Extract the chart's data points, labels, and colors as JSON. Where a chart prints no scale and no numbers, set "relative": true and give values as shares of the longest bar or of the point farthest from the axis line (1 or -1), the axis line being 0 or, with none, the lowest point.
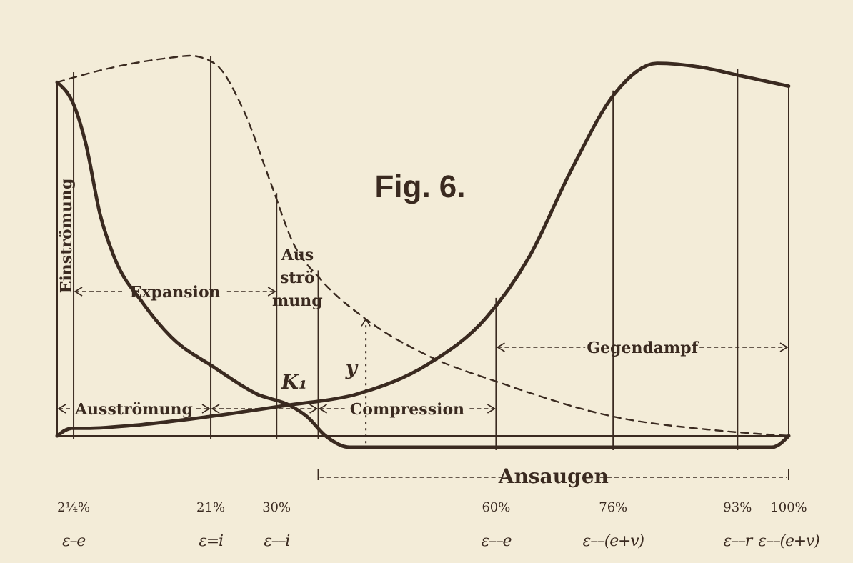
{
  "chart_data": {
    "type": "line",
    "title": "Fig. 6.",
    "relative": true,
    "xlim": [
      0,
      100
    ],
    "xticks": [
      {
        "value": 2.25,
        "label": "2¼%"
      },
      {
        "value": 21,
        "label": "21%"
      },
      {
        "value": 30,
        "label": "30%"
      },
      {
        "value": 60,
        "label": "60%"
      },
      {
        "value": 76,
        "label": "76%"
      },
      {
        "value": 93,
        "label": "93%"
      },
      {
        "value": 100,
        "label": "100%"
      }
    ],
    "tick_labels": "x",
    "marker": "none",
    "series": [
      {
        "color": "#3a2a20",
        "line_style": "solid",
        "x": [
          0,
          2.5,
          3.9,
          5.9,
          7.8,
          11.7,
          15.6,
          21.5,
          27.3,
          31.8,
          34.2,
          36.7,
          40,
          70.3,
          97.7,
          100
        ],
        "values": [
          0.93,
          0.86,
          0.77,
          0.58,
          0.47,
          0.35,
          0.26,
          0.18,
          0.11,
          0.08,
          0.05,
          0,
          -0.03,
          -0.03,
          -0.03,
          0
        ]
      },
      {
        "color": "#3a2a20",
        "line_style": "solid",
        "x": [
          0,
          2,
          3.9,
          11.7,
          20.5,
          31.3,
          41,
          50.8,
          58.6,
          64.5,
          70.3,
          76.2,
          82,
          87.9,
          92.8,
          100
        ],
        "values": [
          0,
          0.02,
          0.02,
          0.03,
          0.05,
          0.08,
          0.11,
          0.19,
          0.31,
          0.47,
          0.7,
          0.9,
          0.98,
          0.97,
          0.95,
          0.92
        ]
      },
      {
        "color": "#3a2a20",
        "line_style": "dashed",
        "x": [
          0,
          7.8,
          15.6,
          18.2,
          21.5,
          25.4,
          29.3,
          32.2,
          36.1,
          42,
          50.8,
          60.5,
          76.2,
          89.8,
          100
        ],
        "values": [
          0.93,
          0.97,
          0.995,
          1,
          0.98,
          0.86,
          0.66,
          0.51,
          0.41,
          0.31,
          0.21,
          0.14,
          0.05,
          0.015,
          0
        ]
      }
    ],
    "ref_lines": [
      {
        "axis": "x",
        "value": 2.25,
        "label": null
      },
      {
        "axis": "x",
        "value": 21,
        "label": null
      },
      {
        "axis": "x",
        "value": 30,
        "label": null
      },
      {
        "axis": "x",
        "value": 35.7,
        "label": null
      },
      {
        "axis": "x",
        "value": 60,
        "label": null
      },
      {
        "axis": "x",
        "value": 76,
        "label": null
      },
      {
        "axis": "x",
        "value": 93,
        "label": null
      },
      {
        "axis": "x",
        "value": 42.2,
        "label": null,
        "line_style": "dotted"
      }
    ],
    "annotations": [
      "Einströmung",
      "Expansion",
      "Aus\nströ\nmung",
      "Ausströmung",
      "Compression",
      "Gegendampf",
      "Ansaugen",
      "K₁",
      "y",
      "ε–e",
      "ε=i",
      "ε––i",
      "ε––e",
      "ε––(e+v)",
      "ε––r",
      "ε––(e+v)"
    ]
  }
}
